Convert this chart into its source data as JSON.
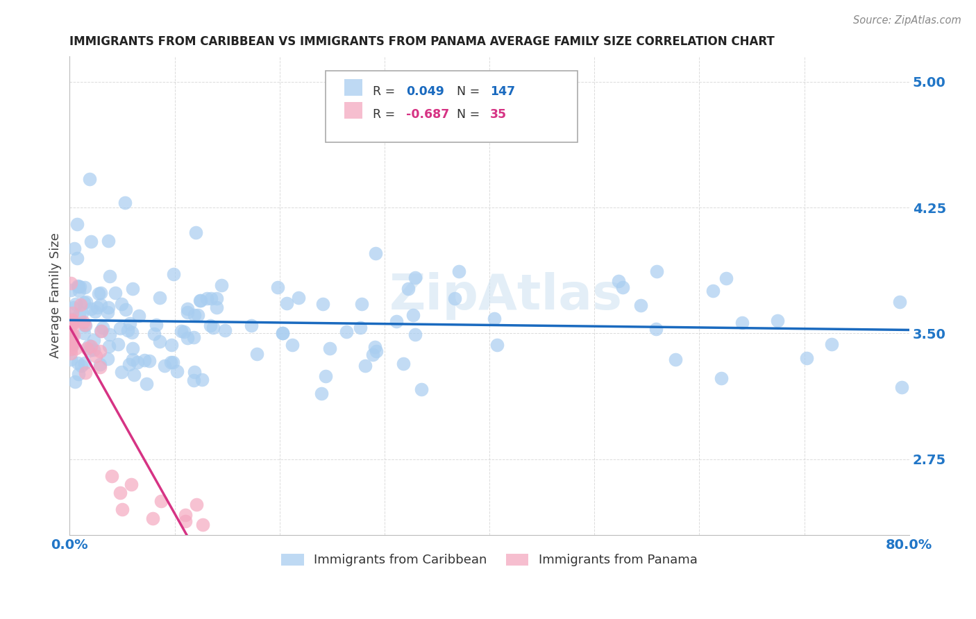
{
  "title": "IMMIGRANTS FROM CARIBBEAN VS IMMIGRANTS FROM PANAMA AVERAGE FAMILY SIZE CORRELATION CHART",
  "source": "Source: ZipAtlas.com",
  "ylabel": "Average Family Size",
  "yticks": [
    2.75,
    3.5,
    4.25,
    5.0
  ],
  "xlim": [
    0.0,
    0.8
  ],
  "ylim": [
    2.3,
    5.15
  ],
  "caribbean_R": 0.049,
  "caribbean_N": 147,
  "panama_R": -0.687,
  "panama_N": 35,
  "caribbean_color": "#a8cdf0",
  "panama_color": "#f4a8c0",
  "trendline_caribbean_color": "#1a6abf",
  "trendline_panama_color": "#d63384",
  "background_color": "#ffffff",
  "grid_color": "#cccccc",
  "title_color": "#222222",
  "tick_color": "#2176c7",
  "legend_edge_color": "#aaaaaa",
  "legend_r_color": "#333333",
  "watermark": "ZipAtlas"
}
